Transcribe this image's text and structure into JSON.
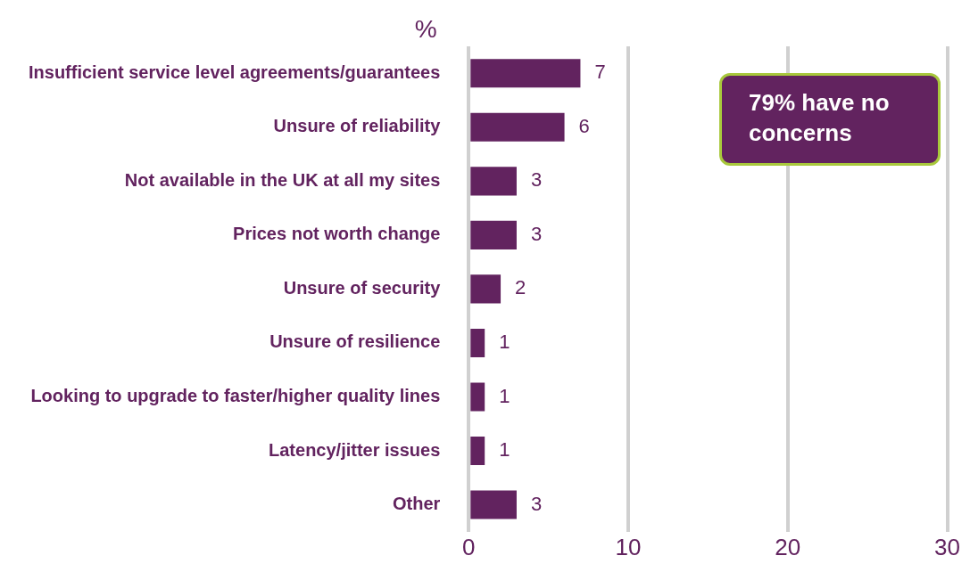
{
  "chart_data": {
    "type": "bar",
    "orientation": "horizontal",
    "xlabel": "%",
    "categories": [
      "Insufficient service level agreements/guarantees",
      "Unsure of reliability",
      "Not available in the UK at all my sites",
      "Prices not worth change",
      "Unsure of security",
      "Unsure of resilience",
      "Looking to upgrade to faster/higher quality lines",
      "Latency/jitter issues",
      "Other"
    ],
    "values": [
      7,
      6,
      3,
      3,
      2,
      1,
      1,
      1,
      3
    ],
    "color": "#62235f",
    "xlim": [
      0,
      30
    ],
    "xticks": [
      0,
      10,
      20,
      30
    ],
    "grid": "x",
    "data_labels": true,
    "annotations": [
      "79% have no concerns"
    ]
  }
}
